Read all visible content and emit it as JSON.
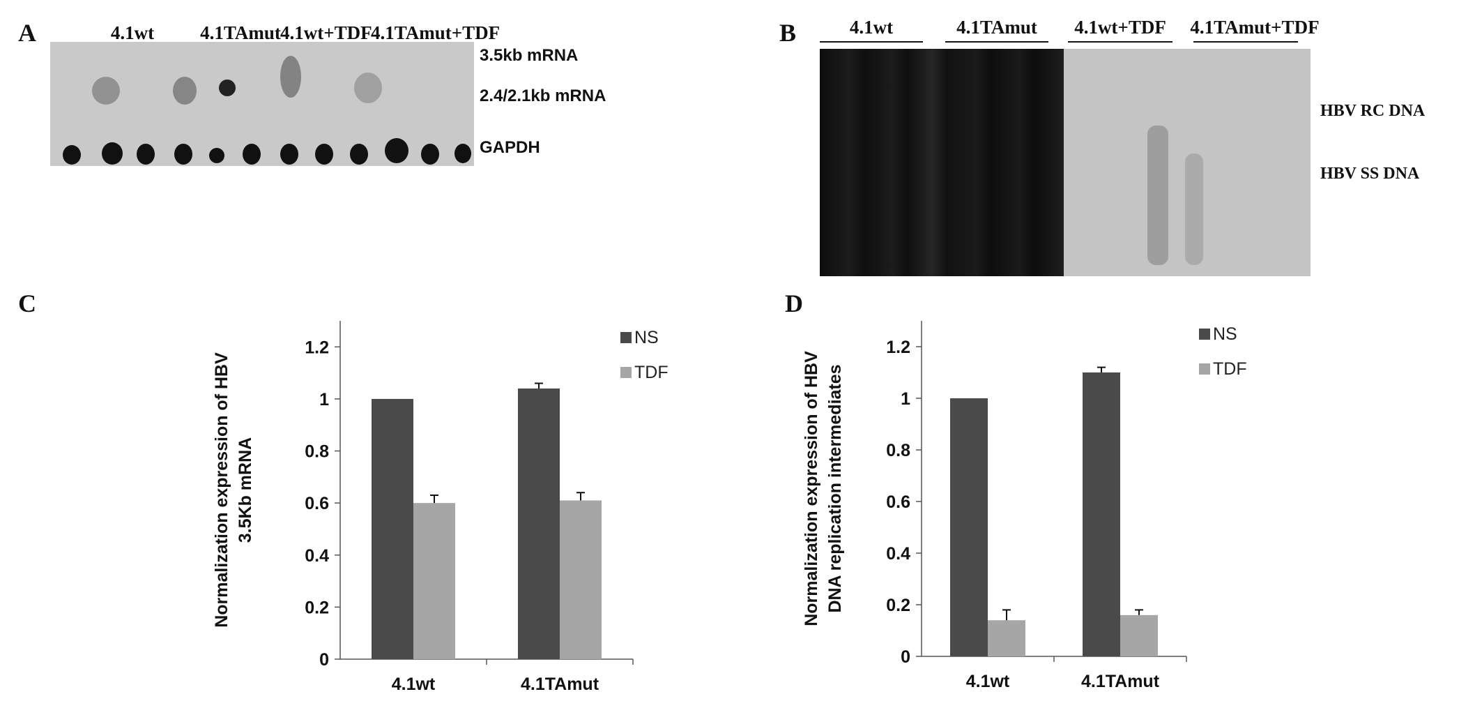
{
  "panel_a": {
    "letter": "A",
    "groups": [
      "4.1wt",
      "4.1TAmut",
      "4.1wt+TDF",
      "4.1TAmut+TDF"
    ],
    "labels": [
      "3.5kb mRNA",
      "2.4/2.1kb mRNA",
      "GAPDH"
    ]
  },
  "panel_b": {
    "letter": "B",
    "groups": [
      "4.1wt",
      "4.1TAmut",
      "4.1wt+TDF",
      "4.1TAmut+TDF"
    ],
    "labels": [
      "HBV RC DNA",
      "HBV SS DNA"
    ]
  },
  "panel_c": {
    "letter": "C"
  },
  "panel_d": {
    "letter": "D"
  },
  "chart_data": [
    {
      "type": "bar",
      "title": "",
      "ylabel": "Normalization expression of HBV 3.5Kb mRNA",
      "ylabel_lines": [
        "Normalization expression of HBV",
        "3.5Kb mRNA"
      ],
      "xlabel": "",
      "categories": [
        "4.1wt",
        "4.1TAmut"
      ],
      "series": [
        {
          "name": "NS",
          "values": [
            1.0,
            1.04
          ],
          "errors": [
            0,
            0.02
          ],
          "color": "#4a4a4a"
        },
        {
          "name": "TDF",
          "values": [
            0.6,
            0.61
          ],
          "errors": [
            0.03,
            0.03
          ],
          "color": "#a6a6a6"
        }
      ],
      "ylim": [
        0,
        1.3
      ],
      "yticks": [
        0,
        0.2,
        0.4,
        0.6,
        0.8,
        1,
        1.2
      ],
      "grid": false,
      "legend": "top-right"
    },
    {
      "type": "bar",
      "title": "",
      "ylabel": "Normalization expression of HBV DNA replication intermediates",
      "ylabel_lines": [
        "Normalization expression of HBV",
        "DNA replication intermediates"
      ],
      "xlabel": "",
      "categories": [
        "4.1wt",
        "4.1TAmut"
      ],
      "series": [
        {
          "name": "NS",
          "values": [
            1.0,
            1.1
          ],
          "errors": [
            0,
            0.02
          ],
          "color": "#4a4a4a"
        },
        {
          "name": "TDF",
          "values": [
            0.14,
            0.16
          ],
          "errors": [
            0.04,
            0.02
          ],
          "color": "#a6a6a6"
        }
      ],
      "ylim": [
        0,
        1.3
      ],
      "yticks": [
        0,
        0.2,
        0.4,
        0.6,
        0.8,
        1,
        1.2
      ],
      "grid": false,
      "legend": "top-right"
    }
  ]
}
